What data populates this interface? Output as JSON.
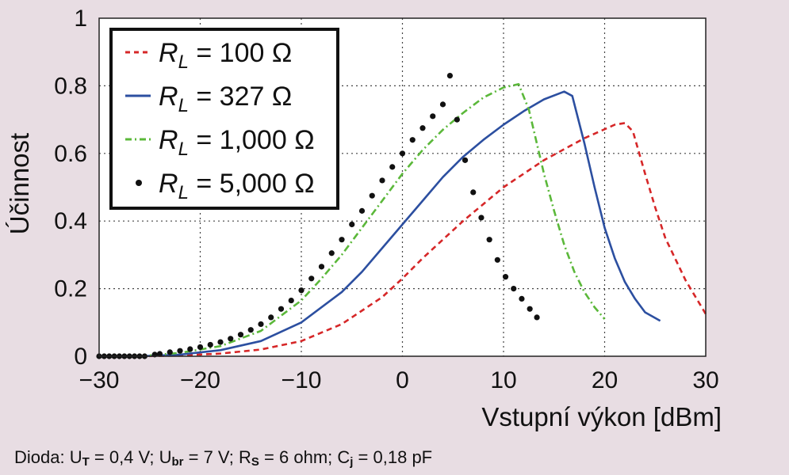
{
  "chart_data": {
    "type": "line",
    "xlabel": "Vstupní výkon [dBm]",
    "ylabel": "Účinnost",
    "xlim": [
      -30,
      30
    ],
    "ylim": [
      0,
      1
    ],
    "xticks": [
      "−30",
      "−20",
      "−10",
      "0",
      "10",
      "20",
      "30"
    ],
    "yticks": [
      "0",
      "0.2",
      "0.4",
      "0.6",
      "0.8",
      "1"
    ],
    "grid": true,
    "legend_position": "top-left",
    "series": [
      {
        "name": "R_L = 100 Ω",
        "label_parts": {
          "var": "R",
          "sub": "L",
          "rest": " = 100 Ω"
        },
        "color": "#d62728",
        "style": "dashed",
        "x": [
          -26,
          -22,
          -18,
          -14,
          -10,
          -6,
          -2,
          0,
          2,
          6,
          10,
          14,
          18,
          21,
          22,
          22.8,
          24,
          25,
          26,
          28,
          30
        ],
        "y": [
          0.0,
          0.002,
          0.008,
          0.02,
          0.045,
          0.095,
          0.175,
          0.23,
          0.29,
          0.4,
          0.5,
          0.58,
          0.645,
          0.685,
          0.69,
          0.665,
          0.54,
          0.44,
          0.35,
          0.225,
          0.125
        ]
      },
      {
        "name": "R_L = 327 Ω",
        "label_parts": {
          "var": "R",
          "sub": "L",
          "rest": " = 327 Ω"
        },
        "color": "#2c4fa0",
        "style": "solid",
        "x": [
          -26,
          -22,
          -18,
          -14,
          -10,
          -6,
          -4,
          -2,
          0,
          2,
          4,
          6,
          8,
          10,
          12,
          14,
          16,
          16.8,
          18,
          19,
          20,
          21,
          22,
          23,
          24,
          25.5
        ],
        "y": [
          0.0,
          0.005,
          0.018,
          0.045,
          0.1,
          0.19,
          0.25,
          0.32,
          0.39,
          0.46,
          0.53,
          0.59,
          0.64,
          0.685,
          0.725,
          0.76,
          0.783,
          0.77,
          0.63,
          0.5,
          0.38,
          0.29,
          0.22,
          0.17,
          0.13,
          0.105
        ]
      },
      {
        "name": "R_L = 1,000 Ω",
        "label_parts": {
          "var": "R",
          "sub": "L",
          "rest": " = 1,000 Ω"
        },
        "color": "#5bb83a",
        "style": "dashdot",
        "x": [
          -26,
          -22,
          -18,
          -14,
          -10,
          -8,
          -6,
          -4,
          -2,
          0,
          2,
          4,
          6,
          8,
          10,
          11.5,
          12.5,
          14,
          15,
          16,
          17,
          18,
          19,
          20
        ],
        "y": [
          0.0,
          0.01,
          0.03,
          0.075,
          0.165,
          0.23,
          0.3,
          0.38,
          0.46,
          0.54,
          0.61,
          0.67,
          0.72,
          0.765,
          0.795,
          0.805,
          0.73,
          0.54,
          0.43,
          0.33,
          0.25,
          0.19,
          0.145,
          0.11
        ]
      },
      {
        "name": "R_L = 5,000 Ω",
        "label_parts": {
          "var": "R",
          "sub": "L",
          "rest": " = 5,000 Ω"
        },
        "color": "#111111",
        "style": "dots",
        "x": [
          -30,
          -29.5,
          -29,
          -28.5,
          -28,
          -27.5,
          -27,
          -26.5,
          -26,
          -25.5,
          -24.5,
          -24,
          -23,
          -22,
          -21,
          -20,
          -19,
          -18,
          -17,
          -16,
          -15,
          -14,
          -13,
          -12,
          -11,
          -10,
          -9,
          -8,
          -7,
          -6,
          -5,
          -4,
          -3,
          -2,
          -1,
          0,
          1,
          2,
          3,
          4,
          4.7,
          5.4,
          6.2,
          7,
          7.8,
          8.6,
          9.4,
          10.2,
          11,
          11.8,
          12.6,
          13.3
        ],
        "y": [
          0.0,
          0.0,
          0.0,
          0.0,
          0.0,
          0.0,
          0.0,
          0.0,
          0.0,
          0.0,
          0.005,
          0.007,
          0.012,
          0.016,
          0.021,
          0.027,
          0.034,
          0.042,
          0.052,
          0.064,
          0.078,
          0.095,
          0.115,
          0.14,
          0.165,
          0.195,
          0.23,
          0.265,
          0.305,
          0.345,
          0.39,
          0.43,
          0.475,
          0.52,
          0.56,
          0.6,
          0.64,
          0.675,
          0.71,
          0.745,
          0.83,
          0.7,
          0.58,
          0.485,
          0.41,
          0.345,
          0.285,
          0.235,
          0.2,
          0.17,
          0.14,
          0.115
        ]
      }
    ]
  },
  "caption_parts": {
    "p1": "Dioda: U",
    "s1": "T",
    "p2": " = 0,4 V; U",
    "s2": "br",
    "p3": " = 7 V; R",
    "s3": "S",
    "p4": " = 6 ohm; C",
    "s4": "j",
    "p5": " = 0,18 pF"
  }
}
